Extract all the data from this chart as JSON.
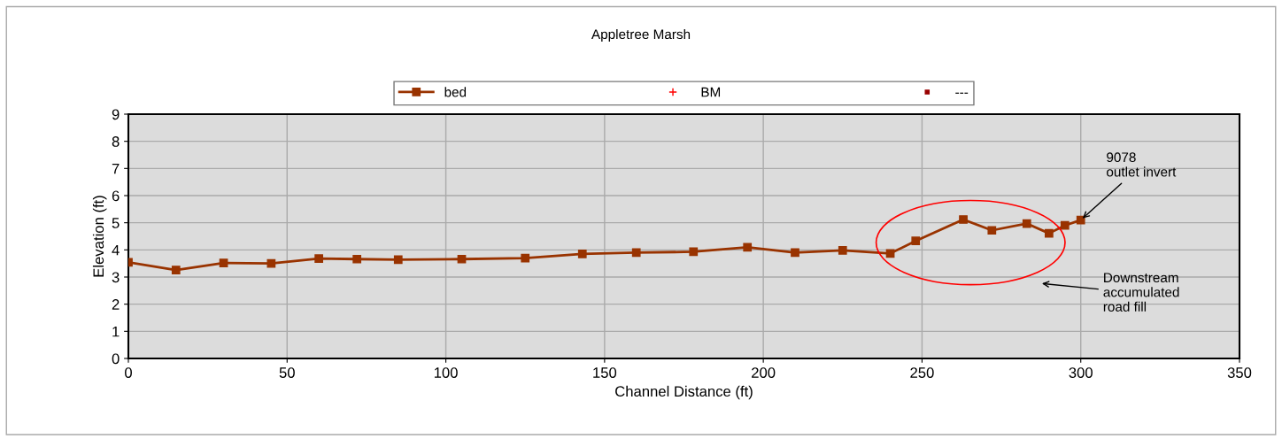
{
  "chart_data": {
    "type": "line",
    "title": "Appletree Marsh",
    "xlabel": "Channel Distance (ft)",
    "ylabel": "Elevation (ft)",
    "x": [
      0,
      15,
      30,
      45,
      60,
      72,
      85,
      105,
      125,
      143,
      160,
      178,
      195,
      210,
      225,
      240,
      248,
      263,
      272,
      283,
      290,
      295,
      300
    ],
    "series": [
      {
        "name": "bed",
        "color": "#993300",
        "marker": "square",
        "line_style": "solid",
        "values": [
          3.54,
          3.26,
          3.52,
          3.5,
          3.68,
          3.66,
          3.64,
          3.66,
          3.7,
          3.85,
          3.9,
          3.93,
          4.1,
          3.9,
          3.98,
          3.87,
          4.33,
          5.12,
          4.72,
          4.97,
          4.61,
          4.9,
          5.1
        ]
      },
      {
        "name": "BM",
        "color": "#ff0000",
        "type": "scatter",
        "marker": "cross",
        "values": [
          null,
          null,
          null,
          null,
          null,
          null,
          null,
          null,
          null,
          null,
          null,
          null,
          null,
          null,
          null,
          null,
          null,
          null,
          null,
          null,
          null,
          null,
          null
        ]
      },
      {
        "name": "---",
        "color": "#990000",
        "type": "scatter",
        "marker": "square",
        "values": [
          null,
          null,
          null,
          null,
          null,
          null,
          null,
          null,
          null,
          null,
          null,
          null,
          null,
          null,
          null,
          null,
          null,
          null,
          null,
          null,
          null,
          null,
          null
        ]
      }
    ],
    "xlim": [
      0,
      350
    ],
    "xticks": [
      0,
      50,
      100,
      150,
      200,
      250,
      300,
      350
    ],
    "ylim": [
      0,
      9
    ],
    "yticks": [
      0,
      1,
      2,
      3,
      4,
      5,
      6,
      7,
      8,
      9
    ],
    "grid": true,
    "legend": "top",
    "annotations": [
      {
        "text": "9078\noutlet invert",
        "x": 300,
        "y": 5.1
      },
      "Downstream\naccumulated\nroad fill"
    ]
  }
}
